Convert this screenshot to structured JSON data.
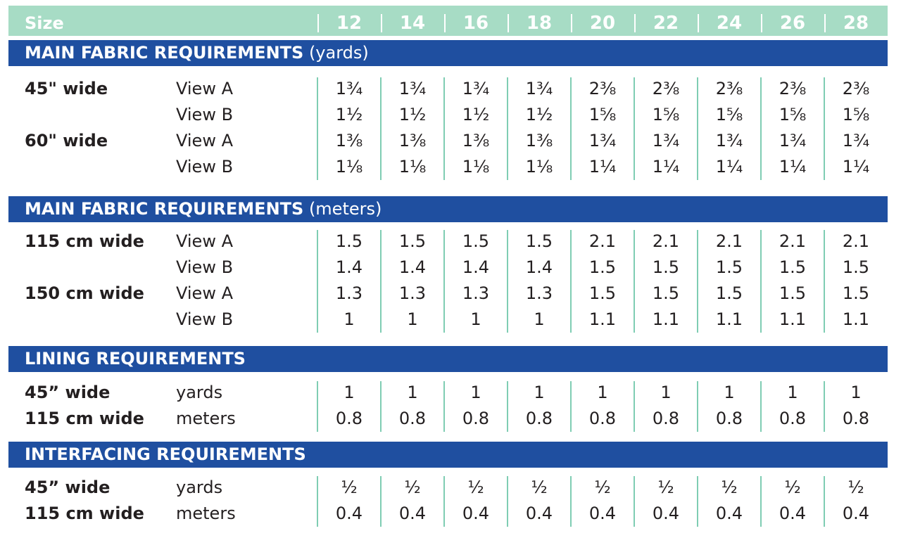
{
  "header": {
    "size_label": "Size",
    "sizes": [
      "12",
      "14",
      "16",
      "18",
      "20",
      "22",
      "24",
      "26",
      "28"
    ]
  },
  "sections": [
    {
      "title_bold": "MAIN FABRIC REQUIREMENTS",
      "title_normal": " (yards)",
      "rows": [
        {
          "label": "45\" wide",
          "sub": "View A",
          "values": [
            "1¾",
            "1¾",
            "1¾",
            "1¾",
            "2⅜",
            "2⅜",
            "2⅜",
            "2⅜",
            "2⅜"
          ]
        },
        {
          "label": "",
          "sub": "View B",
          "values": [
            "1½",
            "1½",
            "1½",
            "1½",
            "1⅝",
            "1⅝",
            "1⅝",
            "1⅝",
            "1⅝"
          ]
        },
        {
          "label": "60\" wide",
          "sub": "View A",
          "values": [
            "1⅜",
            "1⅜",
            "1⅜",
            "1⅜",
            "1¾",
            "1¾",
            "1¾",
            "1¾",
            "1¾"
          ]
        },
        {
          "label": "",
          "sub": "View B",
          "values": [
            "1⅛",
            "1⅛",
            "1⅛",
            "1⅛",
            "1¼",
            "1¼",
            "1¼",
            "1¼",
            "1¼"
          ]
        }
      ]
    },
    {
      "title_bold": "MAIN FABRIC REQUIREMENTS",
      "title_normal": " (meters)",
      "rows": [
        {
          "label": "115 cm wide",
          "sub": "View A",
          "values": [
            "1.5",
            "1.5",
            "1.5",
            "1.5",
            "2.1",
            "2.1",
            "2.1",
            "2.1",
            "2.1"
          ]
        },
        {
          "label": "",
          "sub": "View B",
          "values": [
            "1.4",
            "1.4",
            "1.4",
            "1.4",
            "1.5",
            "1.5",
            "1.5",
            "1.5",
            "1.5"
          ]
        },
        {
          "label": "150 cm wide",
          "sub": "View A",
          "values": [
            "1.3",
            "1.3",
            "1.3",
            "1.3",
            "1.5",
            "1.5",
            "1.5",
            "1.5",
            "1.5"
          ]
        },
        {
          "label": "",
          "sub": "View B",
          "values": [
            "1",
            "1",
            "1",
            "1",
            "1.1",
            "1.1",
            "1.1",
            "1.1",
            "1.1"
          ]
        }
      ]
    },
    {
      "title_bold": "LINING REQUIREMENTS",
      "title_normal": "",
      "rows": [
        {
          "label": "45” wide",
          "sub": "yards",
          "values": [
            "1",
            "1",
            "1",
            "1",
            "1",
            "1",
            "1",
            "1",
            "1"
          ]
        },
        {
          "label": "115 cm wide",
          "sub": "meters",
          "values": [
            "0.8",
            "0.8",
            "0.8",
            "0.8",
            "0.8",
            "0.8",
            "0.8",
            "0.8",
            "0.8"
          ]
        }
      ]
    },
    {
      "title_bold": "INTERFACING REQUIREMENTS",
      "title_normal": "",
      "rows": [
        {
          "label": "45” wide",
          "sub": "yards",
          "values": [
            "½",
            "½",
            "½",
            "½",
            "½",
            "½",
            "½",
            "½",
            "½"
          ]
        },
        {
          "label": "115 cm wide",
          "sub": "meters",
          "values": [
            "0.4",
            "0.4",
            "0.4",
            "0.4",
            "0.4",
            "0.4",
            "0.4",
            "0.4",
            "0.4"
          ]
        }
      ]
    }
  ]
}
